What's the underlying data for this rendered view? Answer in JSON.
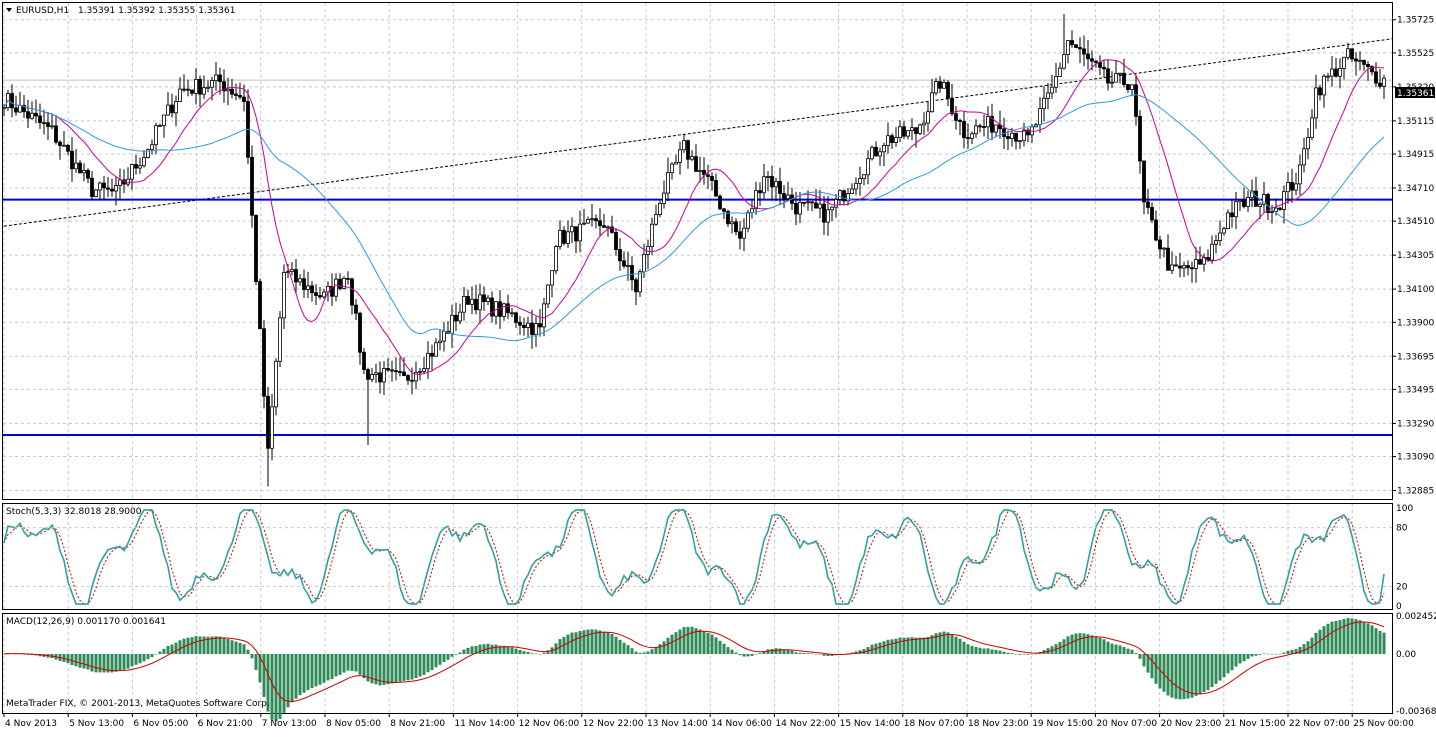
{
  "main_header": {
    "symbol": "EURUSD,H1",
    "ohlc": "1.35391 1.35392 1.35355 1.35361"
  },
  "price_axis": {
    "ticks": [
      "1.35725",
      "1.35525",
      "1.35320",
      "1.35115",
      "1.34915",
      "1.34710",
      "1.34510",
      "1.34305",
      "1.34100",
      "1.33900",
      "1.33695",
      "1.33495",
      "1.33290",
      "1.33090",
      "1.32885"
    ],
    "current_price": "1.35361"
  },
  "time_axis": {
    "labels": [
      "4 Nov 2013",
      "5 Nov 13:00",
      "6 Nov 05:00",
      "6 Nov 21:00",
      "7 Nov 13:00",
      "8 Nov 05:00",
      "8 Nov 21:00",
      "11 Nov 14:00",
      "12 Nov 06:00",
      "12 Nov 22:00",
      "13 Nov 14:00",
      "14 Nov 06:00",
      "14 Nov 22:00",
      "15 Nov 14:00",
      "18 Nov 07:00",
      "18 Nov 23:00",
      "19 Nov 15:00",
      "20 Nov 07:00",
      "20 Nov 23:00",
      "21 Nov 15:00",
      "22 Nov 07:00",
      "25 Nov 00:00"
    ]
  },
  "stoch_panel": {
    "header": "Stoch(5,3,3) 32.8018 28.9000",
    "axis": [
      "100",
      "80",
      "20",
      "0"
    ]
  },
  "macd_panel": {
    "header": "MACD(12,26,9) 0.001170 0.001641",
    "axis": [
      "0.002452",
      "0.00",
      "-0.003681"
    ]
  },
  "copyright": "MetaTrader FIX, © 2001-2013, MetaQuotes Software Corp.",
  "colors": {
    "ma_fast": "#cc0099",
    "ma_slow": "#3399dd",
    "support": "#0000cc",
    "stoch_main": "#30a0a0",
    "stoch_signal": "#cc0000",
    "macd_hist": "#2e8b57",
    "macd_signal": "#cc0000"
  },
  "chart_data": [
    {
      "type": "candlestick",
      "title": "EURUSD,H1",
      "ylim": [
        1.3284,
        1.3582
      ],
      "anchors": [
        [
          0,
          1.3525
        ],
        [
          12,
          1.3505
        ],
        [
          22,
          1.347
        ],
        [
          28,
          1.3468
        ],
        [
          36,
          1.3495
        ],
        [
          44,
          1.353
        ],
        [
          54,
          1.3535
        ],
        [
          60,
          1.3525
        ],
        [
          66,
          1.331
        ],
        [
          70,
          1.342
        ],
        [
          80,
          1.3405
        ],
        [
          86,
          1.342
        ],
        [
          90,
          1.336
        ],
        [
          100,
          1.3355
        ],
        [
          108,
          1.3375
        ],
        [
          116,
          1.3405
        ],
        [
          126,
          1.3395
        ],
        [
          134,
          1.3385
        ],
        [
          138,
          1.344
        ],
        [
          150,
          1.345
        ],
        [
          158,
          1.341
        ],
        [
          164,
          1.3465
        ],
        [
          170,
          1.3495
        ],
        [
          176,
          1.3475
        ],
        [
          184,
          1.344
        ],
        [
          190,
          1.348
        ],
        [
          198,
          1.346
        ],
        [
          206,
          1.3455
        ],
        [
          212,
          1.3475
        ],
        [
          220,
          1.35
        ],
        [
          228,
          1.3505
        ],
        [
          234,
          1.3535
        ],
        [
          240,
          1.3505
        ],
        [
          248,
          1.351
        ],
        [
          256,
          1.35
        ],
        [
          262,
          1.353
        ],
        [
          266,
          1.356
        ],
        [
          270,
          1.355
        ],
        [
          276,
          1.3535
        ],
        [
          282,
          1.3535
        ],
        [
          285,
          1.346
        ],
        [
          292,
          1.342
        ],
        [
          300,
          1.3425
        ],
        [
          306,
          1.3455
        ],
        [
          312,
          1.3465
        ],
        [
          318,
          1.346
        ],
        [
          324,
          1.348
        ],
        [
          328,
          1.353
        ],
        [
          336,
          1.355
        ],
        [
          342,
          1.354
        ],
        [
          345,
          1.3536
        ]
      ],
      "support_levels": [
        1.3464,
        1.3322
      ],
      "trendline": [
        [
          0,
          1.3448
        ],
        [
          347,
          1.3561
        ]
      ]
    },
    {
      "type": "line",
      "title": "Stoch(5,3,3)",
      "ylim": [
        0,
        100
      ],
      "series": [
        {
          "name": "main",
          "last": 32.8018
        },
        {
          "name": "signal",
          "last": 28.9
        }
      ]
    },
    {
      "type": "bar",
      "title": "MACD(12,26,9)",
      "ylim": [
        -0.003681,
        0.002452
      ],
      "series": [
        {
          "name": "macd",
          "last": 0.00117
        },
        {
          "name": "signal",
          "last": 0.001641
        }
      ]
    }
  ]
}
